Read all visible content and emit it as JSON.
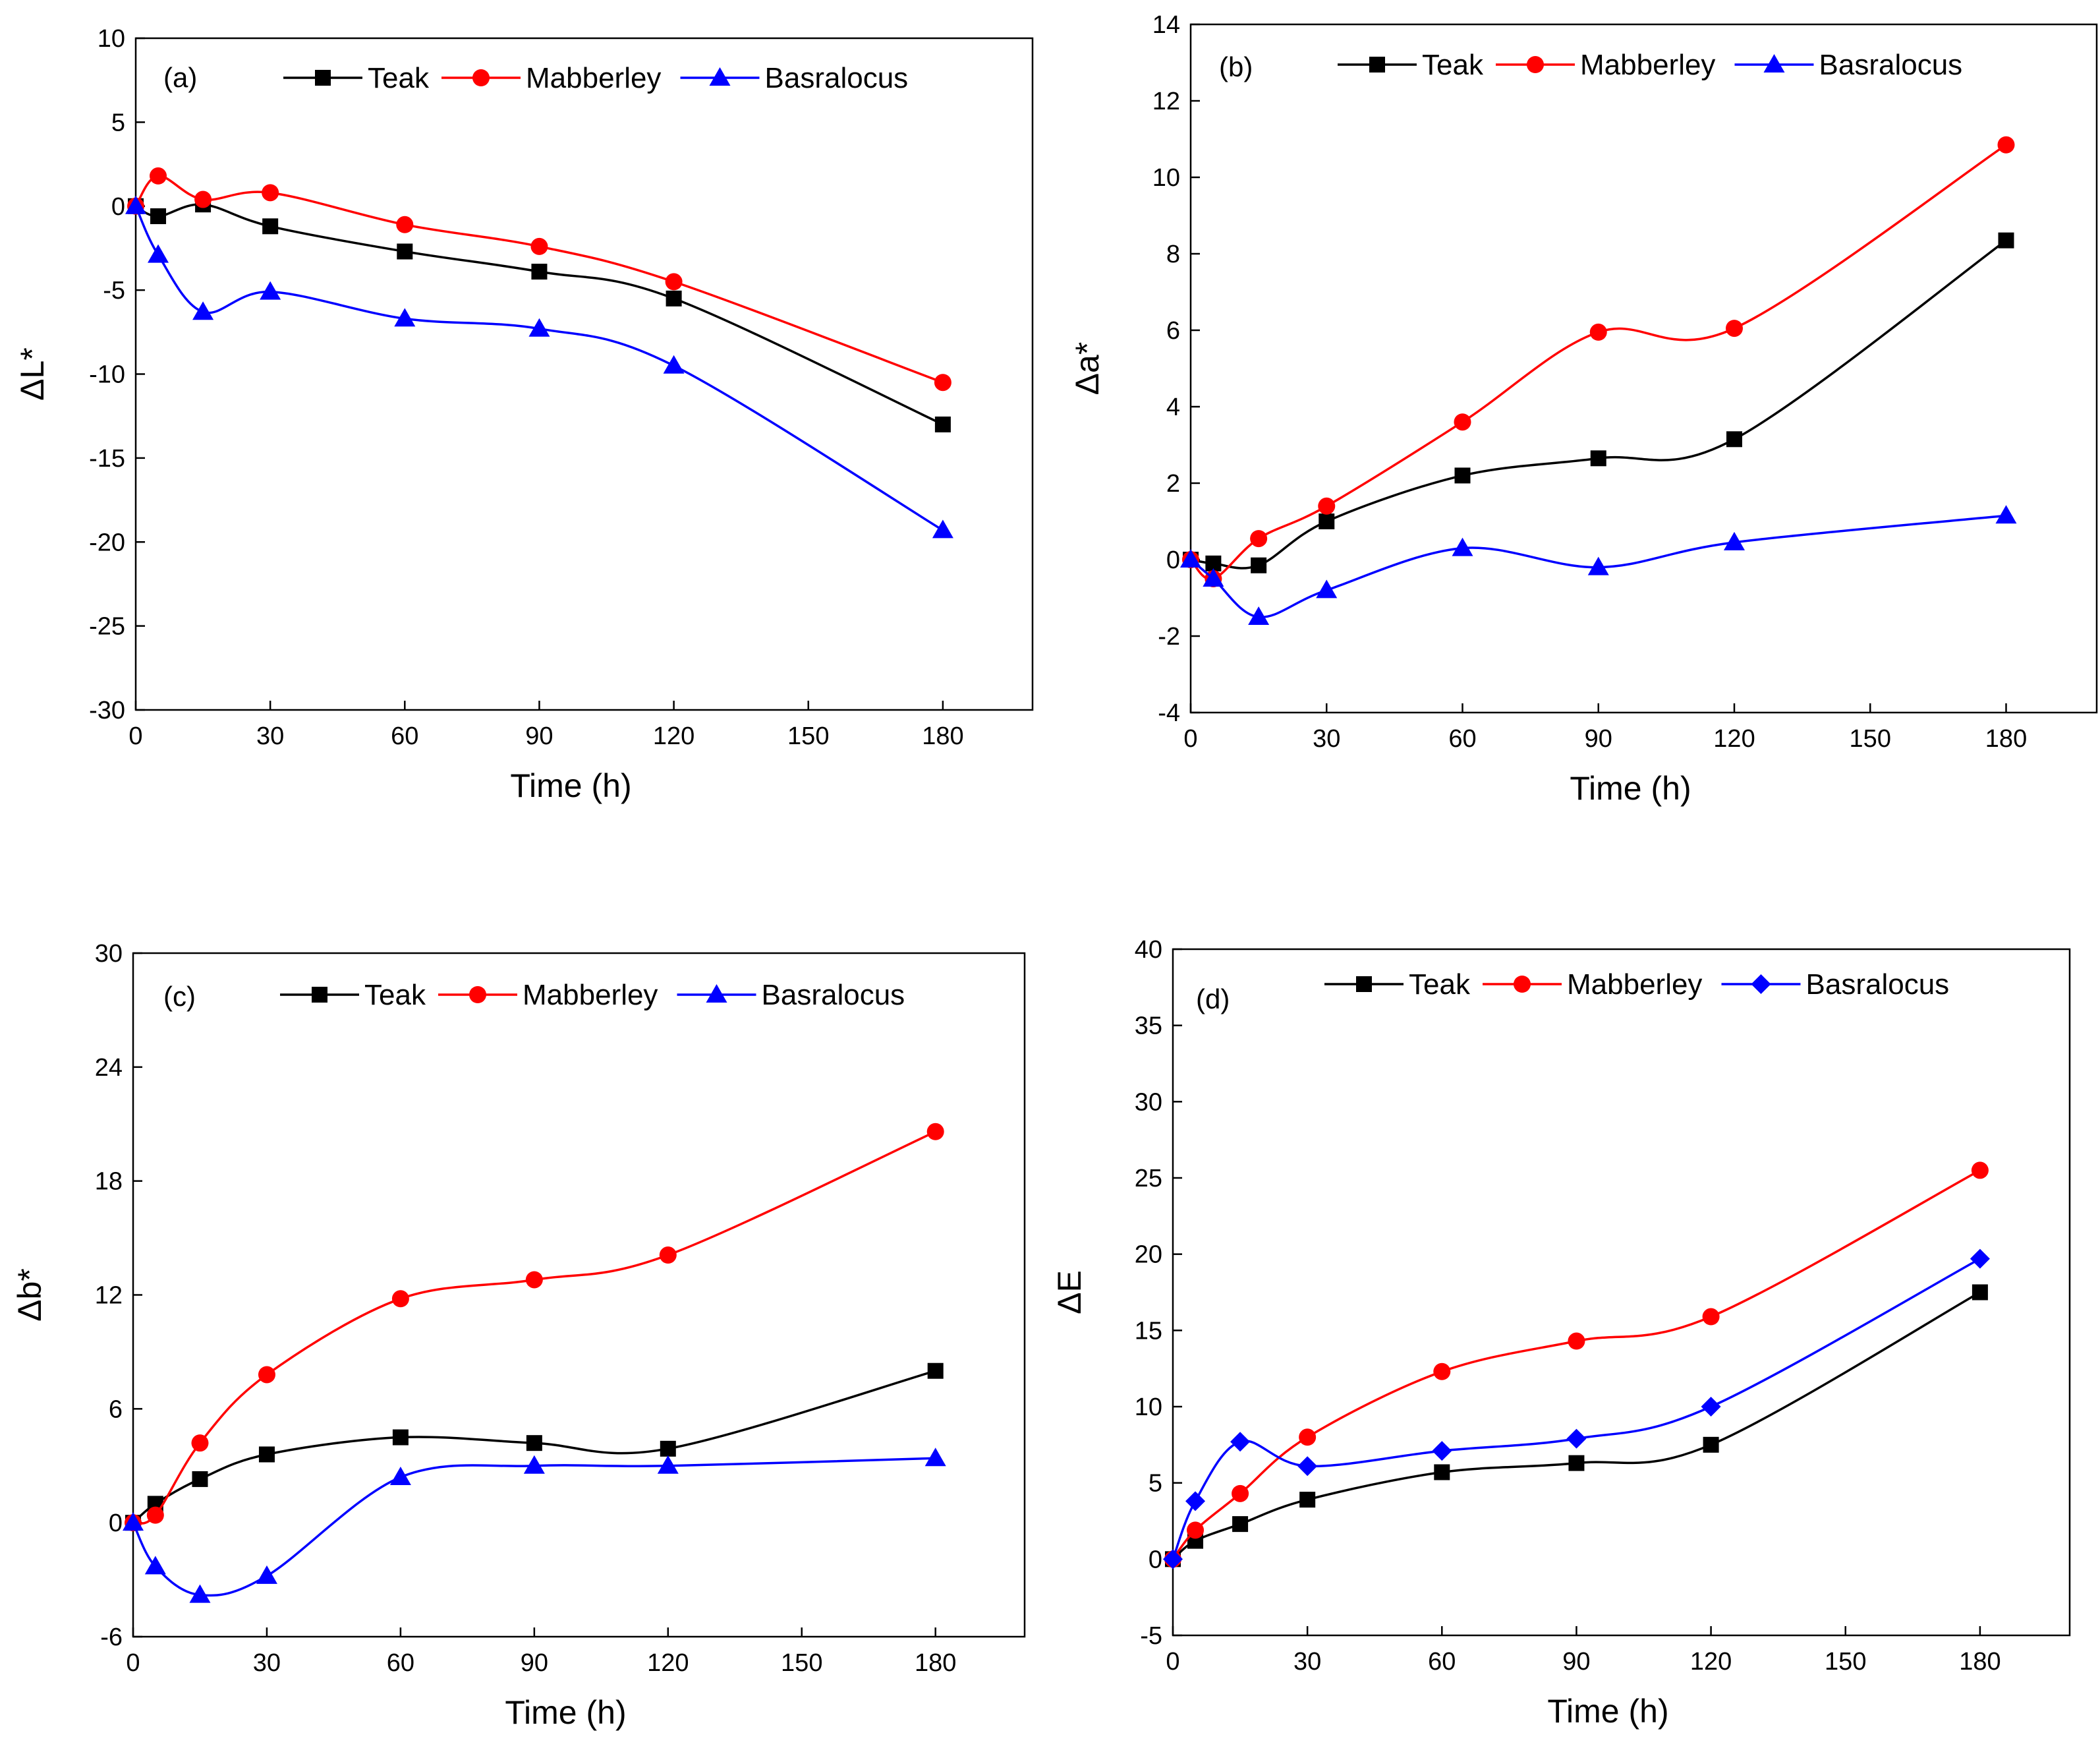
{
  "chart_data": [
    {
      "type": "line",
      "panel_label": "(a)",
      "xlabel": "Time (h)",
      "ylabel": "ΔL*",
      "xlim": [
        0,
        200
      ],
      "ylim": [
        -30,
        10
      ],
      "xticks": [
        0,
        30,
        60,
        90,
        120,
        150,
        180
      ],
      "yticks": [
        -30,
        -25,
        -20,
        -15,
        -10,
        -5,
        0,
        5,
        10
      ],
      "x": [
        0,
        5,
        15,
        30,
        60,
        90,
        120,
        180
      ],
      "series": [
        {
          "name": "Teak",
          "color": "#000000",
          "marker": "square",
          "values": [
            0,
            -0.6,
            0.1,
            -1.2,
            -2.7,
            -3.9,
            -5.5,
            -13.0
          ]
        },
        {
          "name": "Mabberley",
          "color": "#ff0000",
          "marker": "circle",
          "values": [
            0,
            1.8,
            0.4,
            0.8,
            -1.1,
            -2.4,
            -4.5,
            -10.5
          ]
        },
        {
          "name": "Basralocus",
          "color": "#0000ff",
          "marker": "triangle",
          "values": [
            0,
            -2.9,
            -6.3,
            -5.1,
            -6.7,
            -7.3,
            -9.5,
            -19.3
          ]
        }
      ]
    },
    {
      "type": "line",
      "panel_label": "(b)",
      "xlabel": "Time (h)",
      "ylabel": "Δa*",
      "xlim": [
        0,
        200
      ],
      "ylim": [
        -4,
        14
      ],
      "xticks": [
        0,
        30,
        60,
        90,
        120,
        150,
        180
      ],
      "yticks": [
        -4,
        -2,
        0,
        2,
        4,
        6,
        8,
        10,
        12,
        14
      ],
      "x": [
        0,
        5,
        15,
        30,
        60,
        90,
        120,
        180
      ],
      "series": [
        {
          "name": "Teak",
          "color": "#000000",
          "marker": "square",
          "values": [
            0,
            -0.1,
            -0.15,
            1.0,
            2.2,
            2.65,
            3.15,
            8.35
          ]
        },
        {
          "name": "Mabberley",
          "color": "#ff0000",
          "marker": "circle",
          "values": [
            0,
            -0.5,
            0.55,
            1.4,
            3.6,
            5.95,
            6.05,
            10.85
          ]
        },
        {
          "name": "Basralocus",
          "color": "#0000ff",
          "marker": "triangle",
          "values": [
            0,
            -0.5,
            -1.5,
            -0.8,
            0.3,
            -0.2,
            0.45,
            1.15
          ]
        }
      ]
    },
    {
      "type": "line",
      "panel_label": "(c)",
      "xlabel": "Time (h)",
      "ylabel": "Δb*",
      "xlim": [
        0,
        200
      ],
      "ylim": [
        -6,
        30
      ],
      "xticks": [
        0,
        30,
        60,
        90,
        120,
        150,
        180
      ],
      "yticks": [
        -6,
        0,
        6,
        12,
        18,
        24,
        30
      ],
      "x": [
        0,
        5,
        15,
        30,
        60,
        90,
        120,
        180
      ],
      "series": [
        {
          "name": "Teak",
          "color": "#000000",
          "marker": "square",
          "values": [
            0,
            1.0,
            2.3,
            3.6,
            4.5,
            4.2,
            3.9,
            8.0
          ]
        },
        {
          "name": "Mabberley",
          "color": "#ff0000",
          "marker": "circle",
          "values": [
            0,
            0.4,
            4.2,
            7.8,
            11.8,
            12.8,
            14.1,
            20.6
          ]
        },
        {
          "name": "Basralocus",
          "color": "#0000ff",
          "marker": "triangle",
          "values": [
            0,
            -2.3,
            -3.8,
            -2.8,
            2.4,
            3.0,
            3.0,
            3.4
          ]
        }
      ]
    },
    {
      "type": "line",
      "panel_label": "(d)",
      "xlabel": "Time (h)",
      "ylabel": "ΔE",
      "xlim": [
        0,
        200
      ],
      "ylim": [
        -5,
        40
      ],
      "xticks": [
        0,
        30,
        60,
        90,
        120,
        150,
        180
      ],
      "yticks": [
        -5,
        0,
        5,
        10,
        15,
        20,
        25,
        30,
        35,
        40
      ],
      "x": [
        0,
        5,
        15,
        30,
        60,
        90,
        120,
        180
      ],
      "series": [
        {
          "name": "Teak",
          "color": "#000000",
          "marker": "square",
          "values": [
            0,
            1.2,
            2.3,
            3.9,
            5.7,
            6.3,
            7.5,
            17.5
          ]
        },
        {
          "name": "Mabberley",
          "color": "#ff0000",
          "marker": "circle",
          "values": [
            0,
            1.9,
            4.3,
            8.0,
            12.3,
            14.3,
            15.9,
            25.5
          ]
        },
        {
          "name": "Basralocus",
          "color": "#0000ff",
          "marker": "diamond",
          "values": [
            0,
            3.8,
            7.7,
            6.1,
            7.1,
            7.9,
            10.0,
            19.7
          ]
        }
      ]
    }
  ]
}
